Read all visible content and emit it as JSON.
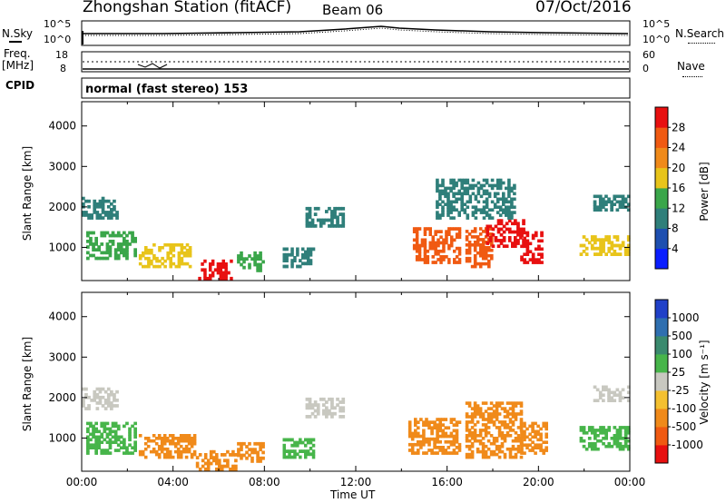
{
  "header": {
    "station": "Zhongshan Station (fitACF)",
    "beam": "Beam 06",
    "date": "07/Oct/2016"
  },
  "left_labels": {
    "nsky": "N.Sky",
    "freq": "Freq.",
    "mhz": "[MHz]",
    "cpid": "CPID"
  },
  "right_labels": {
    "nsearch": "N.Search",
    "nave": "Nave"
  },
  "noise_axis": {
    "left_top": "10^5",
    "left_bottom": "10^0",
    "right_top": "10^5",
    "right_bottom": "10^0"
  },
  "freq_axis": {
    "left_top": "18",
    "left_bottom": "8",
    "right_top": "60",
    "right_bottom": "0"
  },
  "cpid_text": "normal (fast stereo) 153",
  "x_axis": {
    "label": "Time UT",
    "ticks": [
      "00:00",
      "04:00",
      "08:00",
      "12:00",
      "16:00",
      "20:00",
      "00:00"
    ]
  },
  "y_axis": {
    "label": "Slant Range [km]",
    "ticks": [
      "1000",
      "2000",
      "3000",
      "4000"
    ]
  },
  "power_colorbar": {
    "label": "Power [dB]",
    "ticks": [
      "4",
      "8",
      "12",
      "16",
      "20",
      "24",
      "28"
    ],
    "colors": [
      "#0a1eff",
      "#1e4fb0",
      "#2f7f7a",
      "#3aa64a",
      "#e8c41a",
      "#f08a1a",
      "#f05a12",
      "#e81010"
    ]
  },
  "velocity_colorbar": {
    "label": "Velocity [m s⁻¹]",
    "ticks": [
      "1000",
      "500",
      "100",
      "25",
      "-25",
      "-100",
      "-500",
      "-1000"
    ],
    "colors": [
      "#2040c8",
      "#2f6fb0",
      "#3a8a6e",
      "#47b54a",
      "#c8c8c0",
      "#f4c030",
      "#f08a1a",
      "#f05a12",
      "#e81010"
    ]
  },
  "chart_data": {
    "type": "heatmap",
    "title": "Zhongshan Station (fitACF)",
    "xlabel": "Time UT",
    "ylabel": "Slant Range [km]",
    "xlim": [
      "00:00",
      "24:00"
    ],
    "ylim": [
      180,
      4600
    ],
    "power_regions": [
      {
        "t0": 0.0,
        "t1": 1.6,
        "r0": 1700,
        "r1": 2250,
        "level": 8
      },
      {
        "t0": 0.2,
        "t1": 2.4,
        "r0": 700,
        "r1": 1400,
        "level": 12
      },
      {
        "t0": 2.5,
        "t1": 4.8,
        "r0": 500,
        "r1": 1100,
        "level": 16
      },
      {
        "t0": 5.1,
        "t1": 6.6,
        "r0": 200,
        "r1": 700,
        "level": 28
      },
      {
        "t0": 6.8,
        "t1": 8.0,
        "r0": 400,
        "r1": 900,
        "level": 12
      },
      {
        "t0": 8.8,
        "t1": 10.2,
        "r0": 500,
        "r1": 1000,
        "level": 8
      },
      {
        "t0": 9.8,
        "t1": 11.5,
        "r0": 1500,
        "r1": 2000,
        "level": 8
      },
      {
        "t0": 14.5,
        "t1": 16.6,
        "r0": 600,
        "r1": 1500,
        "level": 24
      },
      {
        "t0": 16.8,
        "t1": 18.0,
        "r0": 500,
        "r1": 1500,
        "level": 24
      },
      {
        "t0": 17.7,
        "t1": 19.4,
        "r0": 1000,
        "r1": 1700,
        "level": 28
      },
      {
        "t0": 19.2,
        "t1": 20.2,
        "r0": 600,
        "r1": 1400,
        "level": 28
      },
      {
        "t0": 15.5,
        "t1": 19.0,
        "r0": 1700,
        "r1": 2700,
        "level": 8
      },
      {
        "t0": 21.8,
        "t1": 24.0,
        "r0": 800,
        "r1": 1300,
        "level": 16
      },
      {
        "t0": 22.4,
        "t1": 24.0,
        "r0": 1900,
        "r1": 2300,
        "level": 8
      }
    ],
    "velocity_regions": [
      {
        "t0": 0.0,
        "t1": 1.6,
        "r0": 1700,
        "r1": 2250,
        "level": 0
      },
      {
        "t0": 0.2,
        "t1": 2.4,
        "r0": 600,
        "r1": 1400,
        "level": 80
      },
      {
        "t0": 2.5,
        "t1": 5.0,
        "r0": 500,
        "r1": 1100,
        "level": -200
      },
      {
        "t0": 5.0,
        "t1": 6.8,
        "r0": 200,
        "r1": 700,
        "level": -200
      },
      {
        "t0": 6.8,
        "t1": 8.0,
        "r0": 400,
        "r1": 900,
        "level": -200
      },
      {
        "t0": 8.8,
        "t1": 10.2,
        "r0": 500,
        "r1": 1000,
        "level": 80
      },
      {
        "t0": 9.8,
        "t1": 11.5,
        "r0": 1500,
        "r1": 2000,
        "level": 0
      },
      {
        "t0": 14.3,
        "t1": 16.6,
        "r0": 600,
        "r1": 1500,
        "level": -200
      },
      {
        "t0": 16.8,
        "t1": 19.3,
        "r0": 500,
        "r1": 1900,
        "level": -200
      },
      {
        "t0": 19.2,
        "t1": 20.4,
        "r0": 600,
        "r1": 1400,
        "level": -200
      },
      {
        "t0": 21.8,
        "t1": 24.0,
        "r0": 700,
        "r1": 1300,
        "level": 80
      },
      {
        "t0": 22.4,
        "t1": 24.0,
        "r0": 1900,
        "r1": 2300,
        "level": 0
      }
    ]
  }
}
